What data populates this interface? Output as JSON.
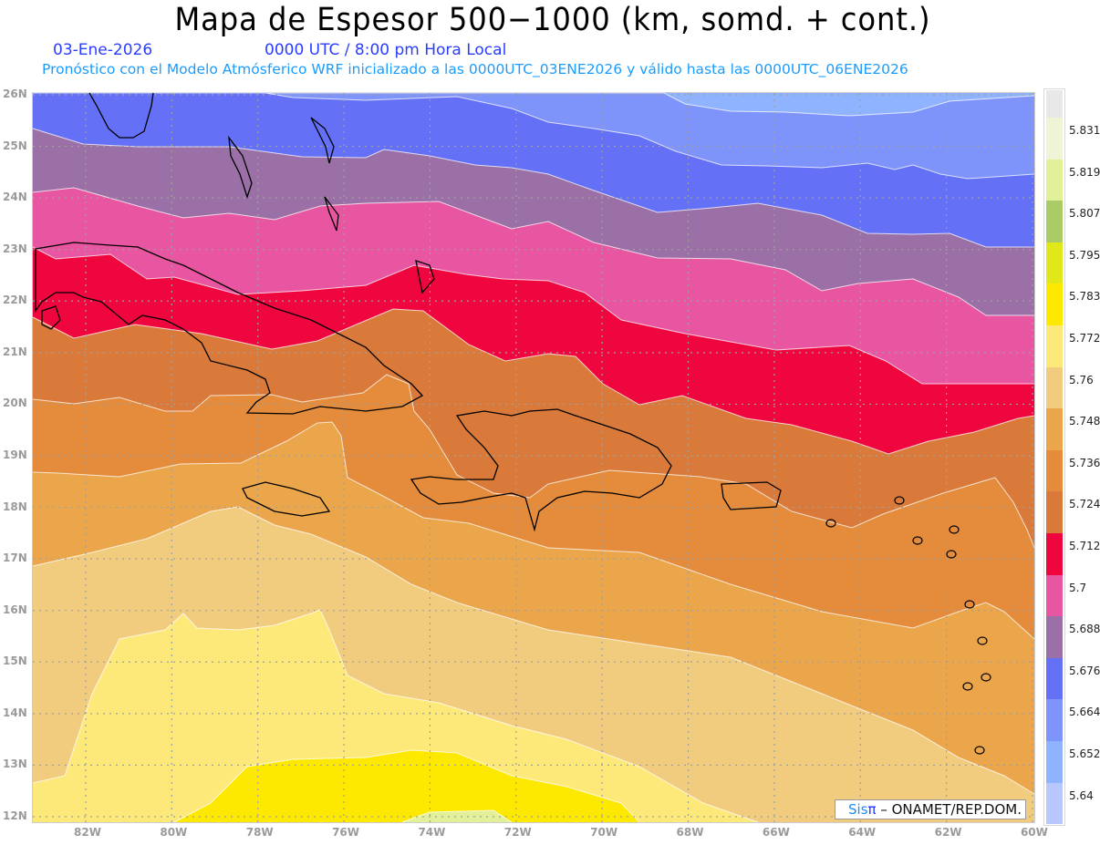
{
  "header": {
    "title": "Mapa de Espesor 500−1000 (km, somd. + cont.)",
    "date": "03-Ene-2026",
    "time": "0000 UTC / 8:00 pm Hora Local",
    "description": "Pronóstico con el Modelo Atmósferico WRF inicializado a las 0000UTC_03ENE2026 y válido hasta las  0000UTC_06ENE2026"
  },
  "axes": {
    "lat_labels": [
      "26N",
      "25N",
      "24N",
      "23N",
      "22N",
      "21N",
      "20N",
      "19N",
      "18N",
      "17N",
      "16N",
      "15N",
      "14N",
      "13N",
      "12N"
    ],
    "lon_labels": [
      "82W",
      "80W",
      "78W",
      "76W",
      "74W",
      "72W",
      "70W",
      "68W",
      "66W",
      "64W",
      "62W",
      "60W"
    ]
  },
  "legend": {
    "labels": [
      "5.831",
      "5.819",
      "5.807",
      "5.795",
      "5.783",
      "5.772",
      "5.76",
      "5.748",
      "5.736",
      "5.724",
      "5.712",
      "5.7",
      "5.688",
      "5.676",
      "5.664",
      "5.652",
      "5.64"
    ],
    "colors": [
      "#e8e8e8",
      "#eff4d6",
      "#e2f099",
      "#aacb66",
      "#e0e81a",
      "#fde800",
      "#fde87a",
      "#f2cc7e",
      "#eba64b",
      "#e48c3c",
      "#d97a3a",
      "#f0063f",
      "#e855a0",
      "#9b70a6",
      "#6470f5",
      "#7f94fb",
      "#8fb3ff",
      "#b8c8ff"
    ]
  },
  "credit": {
    "sis": "Sis",
    "pi": "π",
    "org": "– ONAMET/REP.DOM."
  }
}
